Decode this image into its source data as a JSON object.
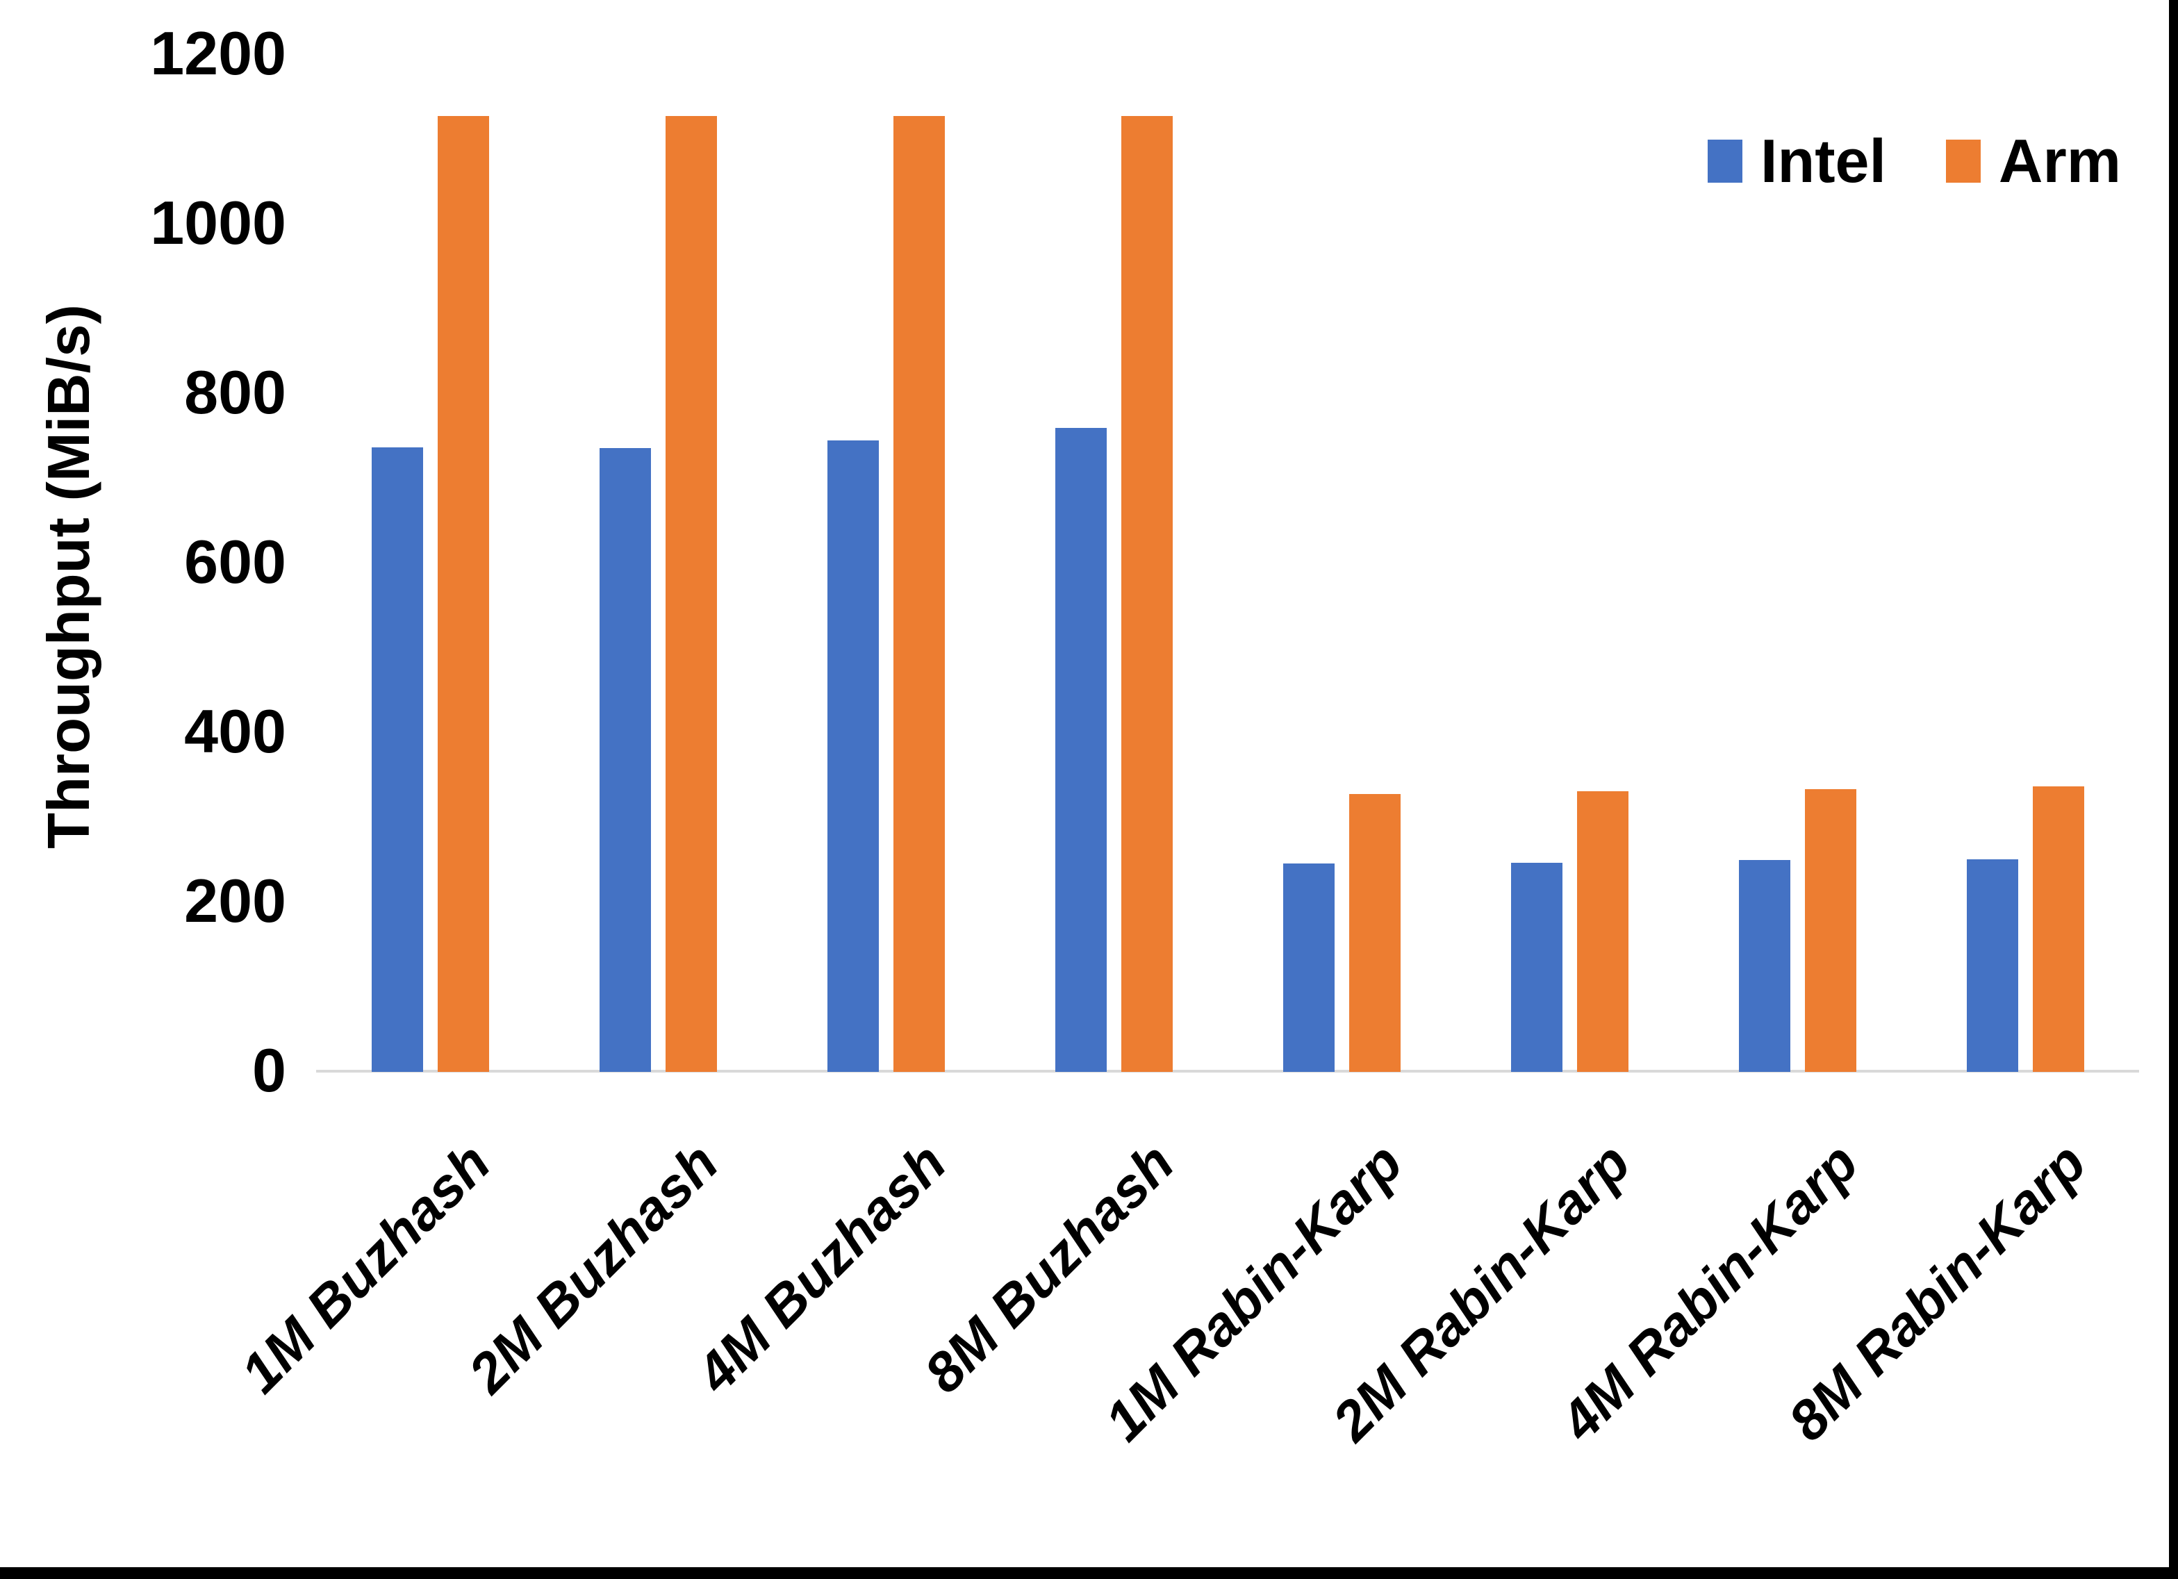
{
  "chart_data": {
    "type": "bar",
    "title": "",
    "xlabel": "",
    "ylabel": "Throughput (MiB/s)",
    "ylim": [
      0,
      1200
    ],
    "y_ticks": [
      0,
      200,
      400,
      600,
      800,
      1000,
      1200
    ],
    "grid": false,
    "legend_position": "top-right",
    "categories": [
      "1M Buzhash",
      "2M Buzhash",
      "4M Buzhash",
      "8M Buzhash",
      "1M Rabin-Karp",
      "2M Rabin-Karp",
      "4M Rabin-Karp",
      "8M Rabin-Karp"
    ],
    "series": [
      {
        "name": "Intel",
        "color": "#4472C4",
        "values": [
          737,
          736,
          745,
          760,
          246,
          247,
          250,
          251
        ]
      },
      {
        "name": "Arm",
        "color": "#ED7D31",
        "values": [
          1128,
          1128,
          1128,
          1128,
          328,
          331,
          334,
          337
        ]
      }
    ]
  },
  "colors": {
    "background": "#FFFFFF",
    "axis_line": "#D9D9D9",
    "text": "#000000",
    "page_border": "#000000"
  }
}
